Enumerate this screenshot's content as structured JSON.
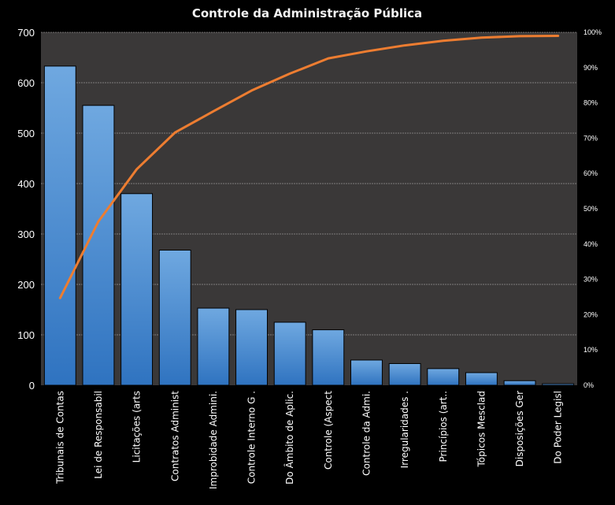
{
  "chart_data": {
    "type": "bar",
    "title": "Controle da Administração Pública",
    "categories": [
      "Tribunais de Contas",
      "Lei de Responsabil",
      "Licitações (arts",
      "Contratos Administ",
      "Improbidade Admini.",
      "Controle Interno G .",
      "Do Âmbito de Aplic.",
      "Controle (Aspect",
      "Controle da Admi.",
      "Irregularidades .",
      "Princípios (art..",
      "Tópicos Mesclad",
      "Disposições Ger",
      "Do Poder Legisl"
    ],
    "series": [
      {
        "type": "bar",
        "values": [
          633,
          555,
          380,
          268,
          153,
          150,
          125,
          110,
          50,
          43,
          33,
          25,
          9,
          3
        ]
      },
      {
        "type": "line",
        "axis": "secondary",
        "values": [
          0.247,
          0.464,
          0.612,
          0.716,
          0.776,
          0.835,
          0.883,
          0.926,
          0.946,
          0.963,
          0.976,
          0.985,
          0.989,
          0.99
        ]
      }
    ],
    "ylim": [
      0,
      700
    ],
    "yticks": [
      "0",
      "100",
      "200",
      "300",
      "400",
      "500",
      "600",
      "700"
    ],
    "y2lim": [
      0,
      1
    ],
    "y2ticks": [
      "0%",
      "10%",
      "20%",
      "30%",
      "40%",
      "50%",
      "60%",
      "70%",
      "80%",
      "90%",
      "100%"
    ],
    "grid": true,
    "colors": {
      "background": "#000000",
      "plot_background": "#3a3838",
      "bar_top": "#6fa8e0",
      "bar_bottom": "#2f73c0",
      "line": "#ed7d31",
      "grid": "#bfbfbf",
      "text": "#ffffff"
    }
  }
}
